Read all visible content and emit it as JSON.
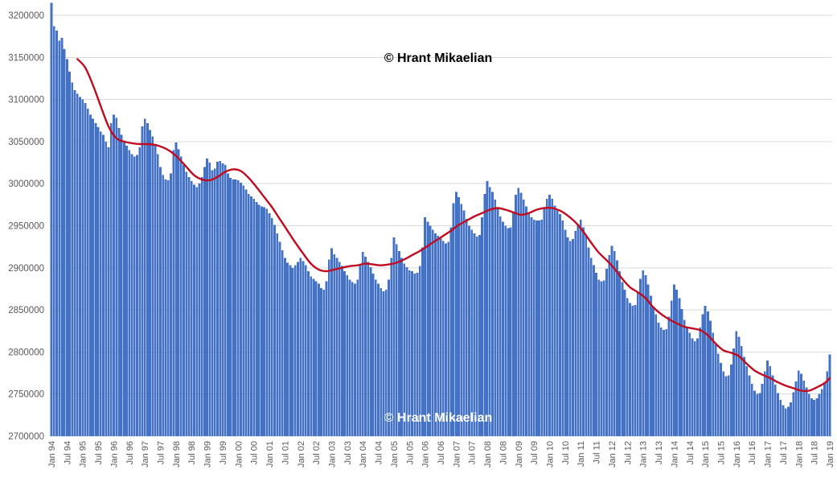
{
  "watermarks": {
    "top": "© Hrant Mikaelian",
    "bottom": "© Hrant Mikaelian"
  },
  "colors": {
    "bar": "#4472c4",
    "trend": "#c00b20",
    "grid": "#d9d9d9",
    "axis_line": "#d9d9d9",
    "axis_label": "#595959",
    "background": "#ffffff",
    "watermark_top": "#000000",
    "watermark_bottom": "#ffffff"
  },
  "chart_data": {
    "type": "bar",
    "title": "",
    "xlabel": "",
    "ylabel": "",
    "legend": "none",
    "grid": "horizontal",
    "ylim": [
      2700000,
      3200000
    ],
    "y_ticks": [
      3200000,
      3150000,
      3100000,
      3050000,
      3000000,
      2950000,
      2900000,
      2850000,
      2800000,
      2750000,
      2700000
    ],
    "x_tick_labels": [
      "Jan 94",
      "Jul 94",
      "Jan 95",
      "Jul 95",
      "Jan 96",
      "Jul 96",
      "Jan 97",
      "Jul 97",
      "Jan 98",
      "Jul 98",
      "Jan 99",
      "Jul 99",
      "Jan 00",
      "Jul 00",
      "Jan 01",
      "Jul 01",
      "Jan 02",
      "Jul 02",
      "Jan 03",
      "Jul 03",
      "Jan 04",
      "Jul 04",
      "Jan 05",
      "Jul 05",
      "Jan 06",
      "Jul 06",
      "Jan 07",
      "Jul 07",
      "Jan 08",
      "Jul 08",
      "Jan 09",
      "Jul 09",
      "Jan 10",
      "Jul 10",
      "Jan 11",
      "Jul 11",
      "Jan 12",
      "Jul 12",
      "Jan 13",
      "Jul 13",
      "Jan 14",
      "Jul 14",
      "Jan 15",
      "Jul 15",
      "Jan 16",
      "Jul 16",
      "Jan 17",
      "Jul 17",
      "Jan 18",
      "Jul 18",
      "Jan 19"
    ],
    "x_tick_every_months": 6,
    "x_start": "Jan 1994",
    "x_end": "Jan 2019",
    "series": [
      {
        "name": "monthly-population-bars",
        "type": "bar",
        "color": "#4472c4",
        "values": [
          3215000,
          3187000,
          3182000,
          3170000,
          3173000,
          3160000,
          3148000,
          3133000,
          3120000,
          3111000,
          3107000,
          3103000,
          3100000,
          3096000,
          3089000,
          3082000,
          3077000,
          3072000,
          3067000,
          3062000,
          3058000,
          3050000,
          3043000,
          3072000,
          3082000,
          3078000,
          3066000,
          3058000,
          3051000,
          3045000,
          3040000,
          3035000,
          3032000,
          3034000,
          3043000,
          3068000,
          3077000,
          3072000,
          3064000,
          3056000,
          3047000,
          3035000,
          3020000,
          3010000,
          3005000,
          3004000,
          3012000,
          3040000,
          3049000,
          3041000,
          3032000,
          3022000,
          3014000,
          3008000,
          3003000,
          2999000,
          2996000,
          3000000,
          3008000,
          3020000,
          3030000,
          3025000,
          3016000,
          3018000,
          3026000,
          3027000,
          3024000,
          3022000,
          3012000,
          3007000,
          3005000,
          3005000,
          3004000,
          3001000,
          2998000,
          2993000,
          2988000,
          2985000,
          2982000,
          2978000,
          2975000,
          2973000,
          2972000,
          2970000,
          2965000,
          2959000,
          2951000,
          2941000,
          2931000,
          2921000,
          2912000,
          2906000,
          2903000,
          2900000,
          2903000,
          2907000,
          2912000,
          2908000,
          2903000,
          2896000,
          2890000,
          2887000,
          2884000,
          2881000,
          2876000,
          2874000,
          2884000,
          2910000,
          2923000,
          2916000,
          2912000,
          2907000,
          2902000,
          2896000,
          2891000,
          2886000,
          2883000,
          2881000,
          2886000,
          2904000,
          2919000,
          2913000,
          2907000,
          2901000,
          2893000,
          2886000,
          2881000,
          2876000,
          2872000,
          2874000,
          2886000,
          2912000,
          2936000,
          2928000,
          2920000,
          2912000,
          2905000,
          2901000,
          2897000,
          2896000,
          2893000,
          2894000,
          2902000,
          2924000,
          2960000,
          2955000,
          2950000,
          2945000,
          2941000,
          2938000,
          2935000,
          2932000,
          2929000,
          2931000,
          2948000,
          2977000,
          2990000,
          2984000,
          2976000,
          2968000,
          2958000,
          2950000,
          2945000,
          2941000,
          2937000,
          2939000,
          2960000,
          2988000,
          3003000,
          2996000,
          2990000,
          2981000,
          2971000,
          2961000,
          2955000,
          2950000,
          2947000,
          2948000,
          2966000,
          2987000,
          2995000,
          2989000,
          2981000,
          2973000,
          2964000,
          2960000,
          2957000,
          2956000,
          2956000,
          2957000,
          2970000,
          2982000,
          2987000,
          2982000,
          2974000,
          2968000,
          2964000,
          2956000,
          2945000,
          2936000,
          2932000,
          2934000,
          2944000,
          2952000,
          2957000,
          2948000,
          2939000,
          2924000,
          2912000,
          2903000,
          2894000,
          2886000,
          2884000,
          2885000,
          2899000,
          2915000,
          2926000,
          2920000,
          2909000,
          2896000,
          2883000,
          2874000,
          2864000,
          2858000,
          2855000,
          2856000,
          2871000,
          2887000,
          2897000,
          2891000,
          2880000,
          2867000,
          2854000,
          2845000,
          2835000,
          2829000,
          2826000,
          2827000,
          2842000,
          2861000,
          2880000,
          2874000,
          2864000,
          2851000,
          2838000,
          2829000,
          2823000,
          2816000,
          2813000,
          2816000,
          2829000,
          2845000,
          2855000,
          2848000,
          2837000,
          2823000,
          2809000,
          2798000,
          2787000,
          2777000,
          2771000,
          2772000,
          2785000,
          2804000,
          2825000,
          2818000,
          2807000,
          2794000,
          2783000,
          2772000,
          2762000,
          2754000,
          2750000,
          2751000,
          2762000,
          2777000,
          2790000,
          2783000,
          2772000,
          2761000,
          2751000,
          2743000,
          2737000,
          2733000,
          2735000,
          2740000,
          2752000,
          2765000,
          2778000,
          2774000,
          2766000,
          2758000,
          2750000,
          2745000,
          2743000,
          2745000,
          2750000,
          2756000,
          2764000,
          2777000,
          2797000
        ]
      },
      {
        "name": "trend-line",
        "type": "line",
        "color": "#c00b20",
        "points": [
          [
            10,
            3148000
          ],
          [
            13,
            3138000
          ],
          [
            16,
            3117000
          ],
          [
            19,
            3092000
          ],
          [
            22,
            3068000
          ],
          [
            25,
            3054000
          ],
          [
            28,
            3050000
          ],
          [
            31,
            3048000
          ],
          [
            34,
            3047000
          ],
          [
            37,
            3047000
          ],
          [
            40,
            3046000
          ],
          [
            43,
            3043000
          ],
          [
            46,
            3038000
          ],
          [
            49,
            3030000
          ],
          [
            52,
            3020000
          ],
          [
            55,
            3010000
          ],
          [
            58,
            3005000
          ],
          [
            61,
            3004000
          ],
          [
            64,
            3008000
          ],
          [
            67,
            3014000
          ],
          [
            70,
            3017000
          ],
          [
            73,
            3015000
          ],
          [
            76,
            3007000
          ],
          [
            79,
            2996000
          ],
          [
            82,
            2984000
          ],
          [
            85,
            2972000
          ],
          [
            88,
            2958000
          ],
          [
            91,
            2944000
          ],
          [
            94,
            2930000
          ],
          [
            97,
            2917000
          ],
          [
            100,
            2905000
          ],
          [
            103,
            2898000
          ],
          [
            106,
            2896000
          ],
          [
            109,
            2898000
          ],
          [
            112,
            2900000
          ],
          [
            115,
            2902000
          ],
          [
            118,
            2903000
          ],
          [
            121,
            2905000
          ],
          [
            124,
            2904000
          ],
          [
            127,
            2903000
          ],
          [
            130,
            2904000
          ],
          [
            133,
            2906000
          ],
          [
            136,
            2910000
          ],
          [
            139,
            2915000
          ],
          [
            142,
            2920000
          ],
          [
            145,
            2926000
          ],
          [
            148,
            2932000
          ],
          [
            151,
            2938000
          ],
          [
            154,
            2944000
          ],
          [
            157,
            2951000
          ],
          [
            160,
            2956000
          ],
          [
            163,
            2961000
          ],
          [
            166,
            2965000
          ],
          [
            169,
            2969000
          ],
          [
            172,
            2971000
          ],
          [
            175,
            2969000
          ],
          [
            178,
            2966000
          ],
          [
            181,
            2963000
          ],
          [
            184,
            2965000
          ],
          [
            187,
            2969000
          ],
          [
            190,
            2971000
          ],
          [
            193,
            2971000
          ],
          [
            196,
            2968000
          ],
          [
            199,
            2962000
          ],
          [
            202,
            2954000
          ],
          [
            205,
            2943000
          ],
          [
            208,
            2930000
          ],
          [
            211,
            2918000
          ],
          [
            214,
            2909000
          ],
          [
            217,
            2899000
          ],
          [
            220,
            2887000
          ],
          [
            223,
            2877000
          ],
          [
            226,
            2871000
          ],
          [
            229,
            2864000
          ],
          [
            232,
            2853000
          ],
          [
            235,
            2845000
          ],
          [
            238,
            2839000
          ],
          [
            241,
            2834000
          ],
          [
            244,
            2830000
          ],
          [
            247,
            2828000
          ],
          [
            250,
            2826000
          ],
          [
            253,
            2820000
          ],
          [
            256,
            2810000
          ],
          [
            259,
            2802000
          ],
          [
            262,
            2799000
          ],
          [
            265,
            2795000
          ],
          [
            268,
            2786000
          ],
          [
            271,
            2778000
          ],
          [
            274,
            2773000
          ],
          [
            277,
            2769000
          ],
          [
            280,
            2764000
          ],
          [
            283,
            2760000
          ],
          [
            286,
            2757000
          ],
          [
            289,
            2754000
          ],
          [
            292,
            2754000
          ],
          [
            295,
            2758000
          ],
          [
            298,
            2763000
          ],
          [
            300,
            2769000
          ]
        ]
      }
    ]
  }
}
